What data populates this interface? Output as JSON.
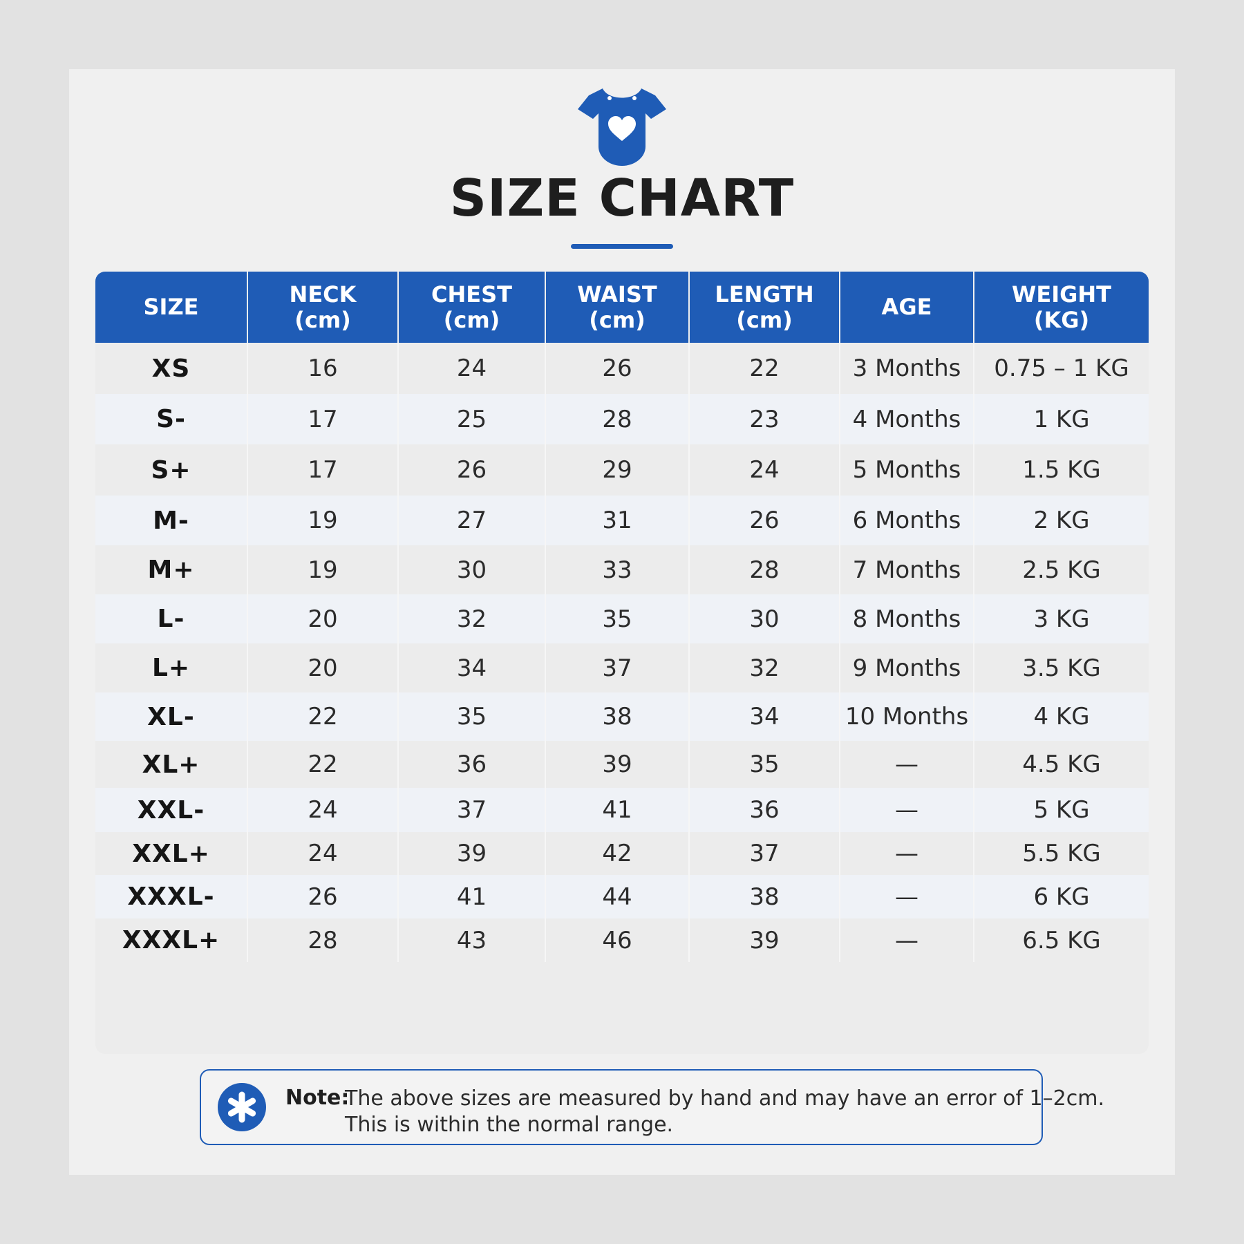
{
  "colors": {
    "accent": "#1f5cb6",
    "header_text": "#ffffff",
    "page_bg": "#e2e2e2",
    "card_bg": "#f0f0f0"
  },
  "header": {
    "icon": "baby-onesie-heart-icon",
    "title": "SIZE CHART"
  },
  "table": {
    "columns": [
      {
        "label": "SIZE",
        "unit": ""
      },
      {
        "label": "NECK",
        "unit": "(cm)"
      },
      {
        "label": "CHEST",
        "unit": "(cm)"
      },
      {
        "label": "WAIST",
        "unit": "(cm)"
      },
      {
        "label": "LENGTH",
        "unit": "(cm)"
      },
      {
        "label": "AGE",
        "unit": ""
      },
      {
        "label": "WEIGHT",
        "unit": "(KG)"
      }
    ],
    "rows": [
      [
        "XS",
        "16",
        "24",
        "26",
        "22",
        "3 Months",
        "0.75 – 1 KG"
      ],
      [
        "S-",
        "17",
        "25",
        "28",
        "23",
        "4 Months",
        "1 KG"
      ],
      [
        "S+",
        "17",
        "26",
        "29",
        "24",
        "5 Months",
        "1.5 KG"
      ],
      [
        "M-",
        "19",
        "27",
        "31",
        "26",
        "6 Months",
        "2 KG"
      ],
      [
        "M+",
        "19",
        "30",
        "33",
        "28",
        "7 Months",
        "2.5 KG"
      ],
      [
        "L-",
        "20",
        "32",
        "35",
        "30",
        "8 Months",
        "3 KG"
      ],
      [
        "L+",
        "20",
        "34",
        "37",
        "32",
        "9 Months",
        "3.5 KG"
      ],
      [
        "XL-",
        "22",
        "35",
        "38",
        "34",
        "10 Months",
        "4 KG"
      ],
      [
        "XL+",
        "22",
        "36",
        "39",
        "35",
        "—",
        "4.5 KG"
      ],
      [
        "XXL-",
        "24",
        "37",
        "41",
        "36",
        "—",
        "5 KG"
      ],
      [
        "XXL+",
        "24",
        "39",
        "42",
        "37",
        "—",
        "5.5 KG"
      ],
      [
        "XXXL-",
        "26",
        "41",
        "44",
        "38",
        "—",
        "6 KG"
      ],
      [
        "XXXL+",
        "28",
        "43",
        "46",
        "39",
        "—",
        "6.5 KG"
      ]
    ]
  },
  "note": {
    "icon": "asterisk-icon",
    "label": "Note:",
    "line1": "The above sizes are measured by hand and may have an error of 1–2cm.",
    "line2": "This is within the normal range."
  }
}
